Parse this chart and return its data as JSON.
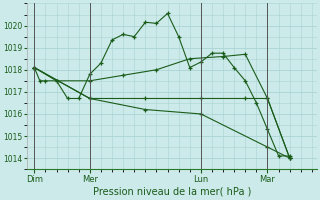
{
  "background_color": "#cceaea",
  "grid_color": "#aad4d4",
  "line_color": "#1a5c1a",
  "xlabel": "Pression niveau de la mer( hPa )",
  "ylim": [
    1013.5,
    1021.0
  ],
  "yticks": [
    1014,
    1015,
    1016,
    1017,
    1018,
    1019,
    1020
  ],
  "day_labels": [
    "Dim",
    "Mer",
    "Lun",
    "Mar"
  ],
  "day_positions": [
    0,
    60,
    180,
    252
  ],
  "xlim": [
    -8,
    305
  ],
  "series": [
    {
      "x": [
        0,
        6,
        12,
        24,
        36,
        48,
        60,
        72,
        84,
        96,
        108,
        120,
        132,
        144,
        156,
        168,
        180,
        192,
        204,
        216,
        228,
        240,
        252,
        264,
        276
      ],
      "y": [
        1018.1,
        1017.5,
        1017.5,
        1017.5,
        1016.7,
        1016.7,
        1017.8,
        1018.3,
        1019.35,
        1019.6,
        1019.5,
        1020.15,
        1020.1,
        1020.55,
        1019.5,
        1018.1,
        1018.35,
        1018.75,
        1018.75,
        1018.1,
        1017.5,
        1016.5,
        1015.3,
        1014.1,
        1014.1
      ]
    },
    {
      "x": [
        0,
        24,
        60,
        96,
        132,
        168,
        204,
        228,
        252,
        276
      ],
      "y": [
        1018.1,
        1017.5,
        1017.5,
        1017.75,
        1018.0,
        1018.5,
        1018.6,
        1018.7,
        1016.7,
        1014.0
      ]
    },
    {
      "x": [
        0,
        60,
        120,
        180,
        228,
        252,
        276
      ],
      "y": [
        1018.1,
        1016.7,
        1016.7,
        1016.7,
        1016.7,
        1016.7,
        1014.0
      ]
    },
    {
      "x": [
        0,
        60,
        120,
        180,
        252,
        276
      ],
      "y": [
        1018.1,
        1016.7,
        1016.2,
        1016.0,
        1014.5,
        1014.0
      ]
    }
  ]
}
